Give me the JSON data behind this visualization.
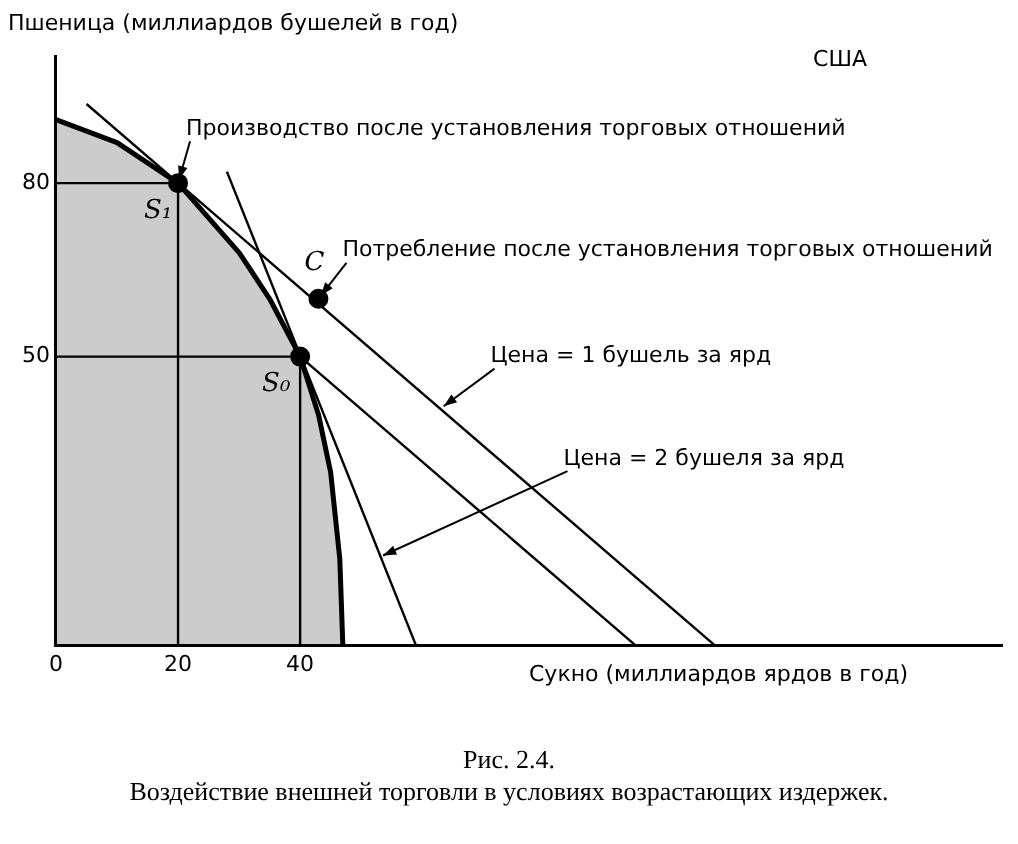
{
  "chart_data": {
    "type": "line",
    "title": "США",
    "xlabel": "Сукно (миллиардов ярдов в год)",
    "ylabel": "Пшеница (миллиардов бушелей в год)",
    "xlim": [
      0,
      155
    ],
    "ylim": [
      0,
      102
    ],
    "xticks": [
      0,
      20,
      40
    ],
    "yticks": [
      50,
      80
    ],
    "grid": false,
    "legend": false,
    "series": [
      {
        "type": "area",
        "color": "#000000",
        "x": [
          0,
          10,
          20,
          30,
          35,
          40,
          43,
          45,
          46.5,
          47
        ],
        "values": [
          91,
          87,
          80,
          68,
          60,
          50,
          40,
          30,
          15,
          0
        ]
      },
      {
        "type": "line",
        "color": "#000000",
        "x": [
          5,
          108
        ],
        "values": [
          93.7,
          0
        ]
      },
      {
        "type": "line",
        "color": "#000000",
        "x": [
          40,
          95
        ],
        "values": [
          50,
          0
        ]
      },
      {
        "type": "line",
        "color": "#000000",
        "x": [
          28,
          59
        ],
        "values": [
          82,
          0
        ]
      },
      {
        "type": "line",
        "color": "#000000",
        "x": [
          0,
          20,
          20
        ],
        "values": [
          80,
          80,
          0
        ]
      },
      {
        "type": "line",
        "color": "#000000",
        "x": [
          0,
          40,
          40
        ],
        "values": [
          50,
          50,
          0
        ]
      },
      {
        "type": "scatter",
        "color": "#000000",
        "marker": "circle",
        "x": [
          20,
          40,
          43
        ],
        "values": [
          80,
          50,
          60
        ]
      }
    ],
    "annotations": [
      {
        "text": "Производство после установления торговых отношений",
        "x": 20,
        "y": 80
      },
      {
        "text": "Потребление после установления торговых отношений",
        "x": 43,
        "y": 60
      },
      {
        "text": "Цена = 1 бушель за ярд",
        "x": 63,
        "y": 41
      },
      {
        "text": "Цена = 2 бушеля за ярд",
        "x": 53,
        "y": 15.3
      },
      {
        "text": "S₁",
        "x": 20,
        "y": 80
      },
      {
        "text": "S₀",
        "x": 40,
        "y": 50
      },
      {
        "text": "C",
        "x": 43,
        "y": 60
      },
      "Рис. 2.4.",
      "Воздействие внешней торговли в условиях возрастающих издержек."
    ]
  }
}
